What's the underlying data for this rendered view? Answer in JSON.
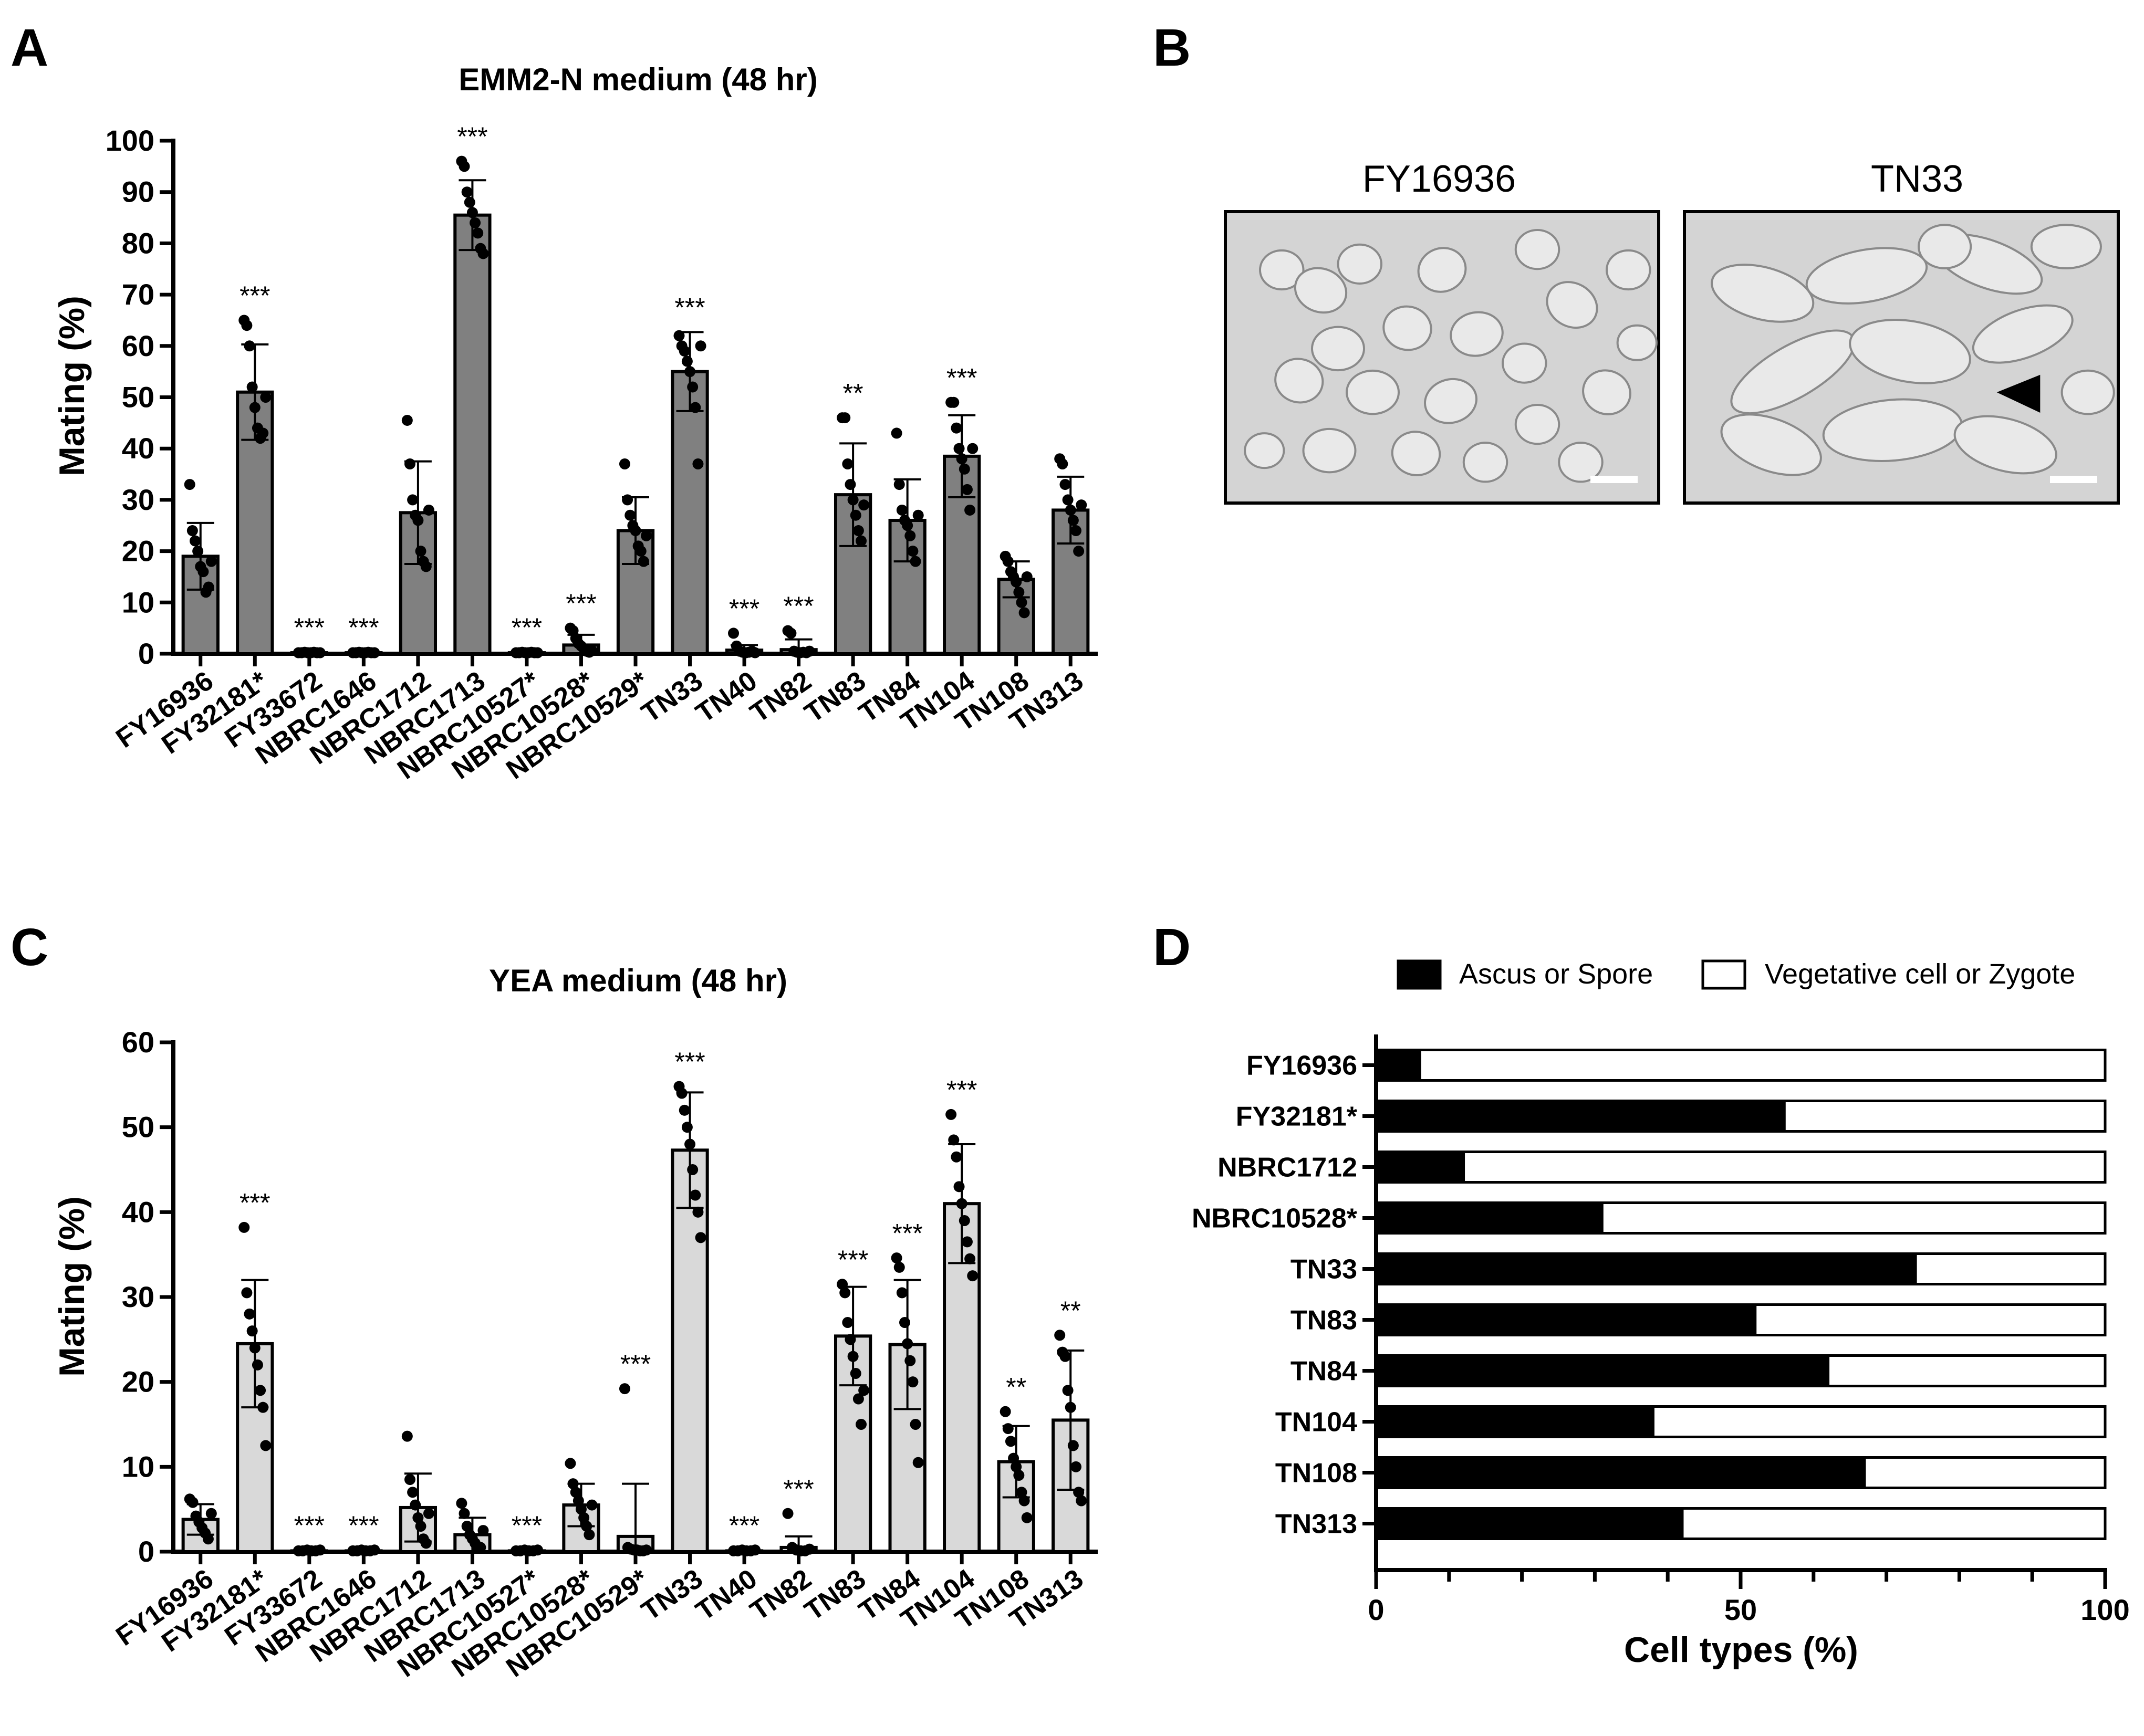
{
  "panels": {
    "A": "A",
    "B": "B",
    "C": "C",
    "D": "D"
  },
  "colors": {
    "panelA_bar": "#808080",
    "panelC_bar": "#d9d9d9",
    "black": "#000000",
    "white": "#ffffff",
    "micro_bg": "#d4d4d4"
  },
  "micrographs": {
    "left_label": "FY16936",
    "right_label": "TN33"
  },
  "chart_data": [
    {
      "id": "A",
      "type": "bar",
      "title": "EMM2-N medium (48 hr)",
      "ylabel": "Mating (%)",
      "xlabel": "",
      "ylim": [
        0,
        100
      ],
      "yticks": [
        0,
        10,
        20,
        30,
        40,
        50,
        60,
        70,
        80,
        90,
        100
      ],
      "categories": [
        "FY16936",
        "FY32181*",
        "FY33672",
        "NBRC1646",
        "NBRC1712",
        "NBRC1713",
        "NBRC10527*",
        "NBRC10528*",
        "NBRC10529*",
        "TN33",
        "TN40",
        "TN82",
        "TN83",
        "TN84",
        "TN104",
        "TN108",
        "TN313"
      ],
      "values": [
        19,
        51,
        0.2,
        0.2,
        27.5,
        85.5,
        0.2,
        1.7,
        24,
        55,
        0.7,
        0.8,
        31,
        26,
        38.5,
        14.5,
        28
      ],
      "errors": [
        6.5,
        9.3,
        0,
        0,
        10,
        6.8,
        0,
        2,
        6.5,
        7.7,
        1,
        2,
        10,
        8,
        8,
        3.5,
        6.5
      ],
      "significance": [
        "",
        "***",
        "***",
        "***",
        "",
        "***",
        "***",
        "***",
        "",
        "***",
        "***",
        "***",
        "**",
        "",
        "***",
        "",
        ""
      ],
      "points": [
        [
          33,
          24,
          22,
          20,
          17,
          16,
          12,
          13,
          18
        ],
        [
          65,
          64,
          60,
          52,
          48,
          44,
          42,
          43,
          50
        ],
        [
          0.2,
          0.2,
          0.3,
          0.2,
          0.2,
          0.3,
          0.2,
          0.2
        ],
        [
          0.2,
          0.2,
          0.3,
          0.2,
          0.2,
          0.3,
          0.2,
          0.2
        ],
        [
          45.5,
          37,
          30,
          27,
          26,
          20,
          18,
          17,
          28
        ],
        [
          96,
          95,
          90,
          88,
          86,
          84,
          82,
          79,
          78
        ],
        [
          0.2,
          0.2,
          0.3,
          0.2,
          0.2,
          0.3,
          0.2,
          0.2
        ],
        [
          5,
          4.5,
          3,
          2,
          1.5,
          1,
          0.5,
          0.3,
          0.6
        ],
        [
          37,
          30,
          27,
          25,
          24,
          21,
          20,
          18,
          23
        ],
        [
          62,
          60,
          59,
          57,
          55,
          52,
          48,
          37,
          60
        ],
        [
          4,
          1.5,
          0.5,
          0.3,
          0.2,
          0.3,
          0.5,
          0.2
        ],
        [
          4.5,
          4,
          0.5,
          0.3,
          0.2,
          0.3,
          0.2,
          0.5
        ],
        [
          46,
          46,
          37,
          33,
          30,
          27,
          24,
          22,
          29
        ],
        [
          43,
          33,
          28,
          26,
          25,
          23,
          20,
          18,
          27
        ],
        [
          49,
          49,
          44,
          40,
          38,
          36,
          32,
          28,
          40
        ],
        [
          19,
          18,
          16,
          15,
          14,
          12,
          10,
          8,
          15
        ],
        [
          38,
          37,
          33,
          30,
          28,
          26,
          24,
          20,
          29
        ]
      ]
    },
    {
      "id": "C",
      "type": "bar",
      "title": "YEA medium (48 hr)",
      "ylabel": "Mating (%)",
      "xlabel": "",
      "ylim": [
        0,
        60
      ],
      "yticks": [
        0,
        10,
        20,
        30,
        40,
        50,
        60
      ],
      "categories": [
        "FY16936",
        "FY32181*",
        "FY33672",
        "NBRC1646",
        "NBRC1712",
        "NBRC1713",
        "NBRC10527*",
        "NBRC10528*",
        "NBRC10529*",
        "TN33",
        "TN40",
        "TN82",
        "TN83",
        "TN84",
        "TN104",
        "TN108",
        "TN313"
      ],
      "values": [
        3.8,
        24.5,
        0.1,
        0.1,
        5.2,
        2,
        0.1,
        5.5,
        1.8,
        47.3,
        0.1,
        0.5,
        25.4,
        24.4,
        41,
        10.6,
        15.5
      ],
      "errors": [
        1.8,
        7.5,
        0,
        0,
        4,
        2,
        0,
        2.5,
        6.2,
        6.8,
        0,
        1.3,
        5.8,
        7.6,
        7,
        4.2,
        8.2
      ],
      "significance": [
        "",
        "***",
        "***",
        "***",
        "",
        "",
        "***",
        "",
        "***",
        "***",
        "***",
        "***",
        "***",
        "***",
        "***",
        "**",
        "**"
      ],
      "points": [
        [
          6.2,
          5.8,
          4.2,
          3.5,
          2.8,
          2.2,
          1.5,
          4.5
        ],
        [
          38.2,
          30.5,
          28,
          26,
          24,
          22,
          19,
          17,
          12.5
        ],
        [
          0.1,
          0.1,
          0.2,
          0.1,
          0.1,
          0.2
        ],
        [
          0.1,
          0.1,
          0.2,
          0.1,
          0.1,
          0.2
        ],
        [
          13.6,
          8.5,
          7,
          5.5,
          4,
          3,
          1.5,
          1,
          4.5
        ],
        [
          5.7,
          4.5,
          3,
          2,
          1.5,
          1,
          0.5,
          0.5,
          2.5
        ],
        [
          0.1,
          0.1,
          0.2,
          0.1,
          0.1,
          0.2
        ],
        [
          10.4,
          8,
          7,
          6,
          5,
          4,
          3,
          2,
          5.5
        ],
        [
          19.2,
          0.5,
          0.3,
          0.2,
          0.2,
          0.1,
          0.1,
          0.2
        ],
        [
          54.8,
          54,
          52,
          50,
          48,
          45,
          42,
          40,
          37
        ],
        [
          0.1,
          0.1,
          0.2,
          0.1,
          0.1,
          0.2
        ],
        [
          4.5,
          0.5,
          0.2,
          0.1,
          0.1,
          0.3
        ],
        [
          31.5,
          30.5,
          27,
          25,
          23,
          21,
          18,
          15,
          19
        ],
        [
          34.6,
          33.5,
          30.5,
          27,
          24.5,
          22.5,
          20,
          15,
          10.5
        ],
        [
          51.5,
          48.5,
          46.5,
          43,
          41,
          39,
          36.5,
          34.5,
          32.5
        ],
        [
          16.5,
          14.5,
          13,
          11,
          10,
          9,
          7,
          6,
          4
        ],
        [
          25.5,
          23.5,
          23,
          19,
          17,
          12.5,
          10,
          7,
          6
        ]
      ]
    },
    {
      "id": "D",
      "type": "bar",
      "orientation": "horizontal",
      "stacked": true,
      "xlabel": "Cell types (%)",
      "ylabel": "",
      "xlim": [
        0,
        100
      ],
      "xticks": [
        0,
        50,
        100
      ],
      "categories": [
        "FY16936",
        "FY32181*",
        "NBRC1712",
        "NBRC10528*",
        "TN33",
        "TN83",
        "TN84",
        "TN104",
        "TN108",
        "TN313"
      ],
      "series": [
        {
          "name": "Ascus or Spore",
          "values": [
            6,
            56,
            12,
            31,
            74,
            52,
            62,
            38,
            67,
            42
          ]
        },
        {
          "name": "Vegetative cell or Zygote",
          "values": [
            94,
            44,
            88,
            69,
            26,
            48,
            38,
            62,
            33,
            58
          ]
        }
      ],
      "legend_position": "top"
    }
  ]
}
